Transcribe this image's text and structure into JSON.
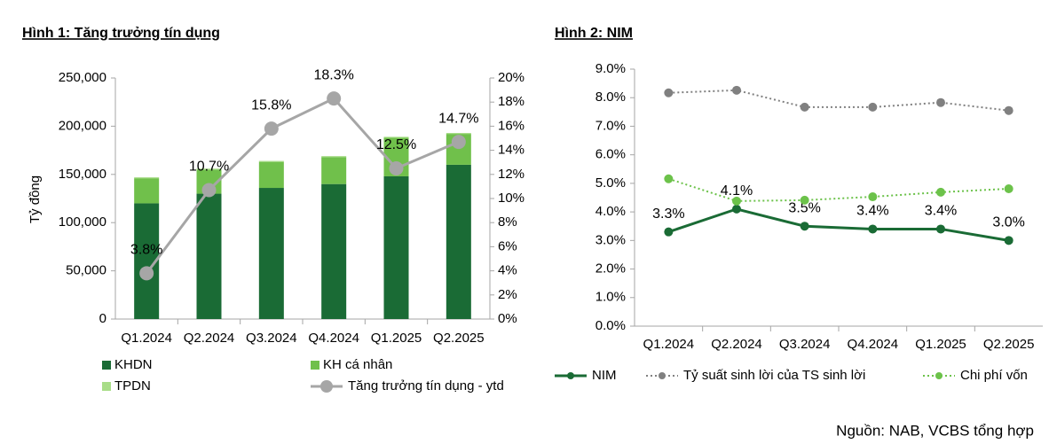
{
  "chart_data": [
    {
      "type": "bar",
      "title": "Hình 1: Tăng trưởng tín dụng",
      "y_label": "Tỷ đồng",
      "stacked": true,
      "categories": [
        "Q1.2024",
        "Q2.2024",
        "Q3.2024",
        "Q4.2024",
        "Q1.2025",
        "Q2.2025"
      ],
      "series": [
        {
          "name": "KHDN",
          "color": "#1a6b35",
          "values": [
            120000,
            130000,
            136000,
            140000,
            148000,
            160000
          ]
        },
        {
          "name": "KH cá nhân",
          "color": "#70c04b",
          "values": [
            26000,
            25000,
            27000,
            28000,
            40000,
            32000
          ]
        },
        {
          "name": "TPDN",
          "color": "#a8dd88",
          "values": [
            1000,
            1000,
            1000,
            1000,
            1000,
            1000
          ]
        },
        {
          "name": "Tăng trưởng tín dụng - ytd",
          "color": "#a6a6a6",
          "axis": "y2",
          "kind": "line",
          "values": [
            3.8,
            10.7,
            15.8,
            18.3,
            12.5,
            14.7
          ],
          "value_labels": [
            "3.8%",
            "10.7%",
            "15.8%",
            "18.3%",
            "12.5%",
            "14.7%"
          ]
        }
      ],
      "ylim": [
        0,
        250000
      ],
      "yticks": [
        0,
        {
          "value": 50000,
          "label": "50,000"
        },
        {
          "value": 100000,
          "label": "100,000"
        },
        {
          "value": 150000,
          "label": "150,000"
        },
        {
          "value": 200000,
          "label": "200,000"
        },
        {
          "value": 250000,
          "label": "250,000"
        }
      ],
      "y2lim": [
        0,
        20
      ],
      "y2ticks": [
        {
          "value": 0,
          "label": "0%"
        },
        {
          "value": 2,
          "label": "2%"
        },
        {
          "value": 4,
          "label": "4%"
        },
        {
          "value": 6,
          "label": "6%"
        },
        {
          "value": 8,
          "label": "8%"
        },
        {
          "value": 10,
          "label": "10%"
        },
        {
          "value": 12,
          "label": "12%"
        },
        {
          "value": 14,
          "label": "14%"
        },
        {
          "value": 16,
          "label": "16%"
        },
        {
          "value": 18,
          "label": "18%"
        },
        {
          "value": 20,
          "label": "20%"
        }
      ]
    },
    {
      "type": "line",
      "title": "Hình 2: NIM",
      "categories": [
        "Q1.2024",
        "Q2.2024",
        "Q3.2024",
        "Q4.2024",
        "Q1.2025",
        "Q2.2025"
      ],
      "series": [
        {
          "name": "NIM",
          "color": "#1a6b35",
          "dash": false,
          "values": [
            3.3,
            4.1,
            3.5,
            3.4,
            3.4,
            3.0
          ],
          "value_labels": [
            "3.3%",
            "4.1%",
            "3.5%",
            "3.4%",
            "3.4%",
            "3.0%"
          ]
        },
        {
          "name": "Tỷ suất sinh lời của TS sinh lời",
          "color": "#808080",
          "dash": true,
          "values": [
            8.17,
            8.26,
            7.67,
            7.67,
            7.83,
            7.55
          ]
        },
        {
          "name": "Chi phí vốn",
          "color": "#6cc24a",
          "dash": true,
          "values": [
            5.16,
            4.38,
            4.41,
            4.53,
            4.69,
            4.81
          ]
        }
      ],
      "ylim": [
        0,
        9
      ],
      "yticks": [
        {
          "value": 0,
          "label": "0.0%"
        },
        {
          "value": 1,
          "label": "1.0%"
        },
        {
          "value": 2,
          "label": "2.0%"
        },
        {
          "value": 3,
          "label": "3.0%"
        },
        {
          "value": 4,
          "label": "4.0%"
        },
        {
          "value": 5,
          "label": "5.0%"
        },
        {
          "value": 6,
          "label": "6.0%"
        },
        {
          "value": 7,
          "label": "7.0%"
        },
        {
          "value": 8,
          "label": "8.0%"
        },
        {
          "value": 9,
          "label": "9.0%"
        }
      ]
    }
  ],
  "source": "Nguồn: NAB, VCBS tổng hợp"
}
